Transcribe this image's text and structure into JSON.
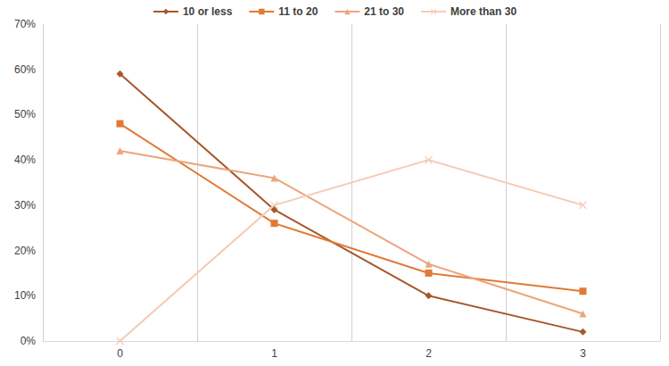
{
  "chart_data": {
    "type": "line",
    "categories": [
      "0",
      "1",
      "2",
      "3"
    ],
    "series": [
      {
        "name": "10 or less",
        "color": "#a5582a",
        "marker": "diamond",
        "values": [
          59,
          29,
          10,
          2
        ]
      },
      {
        "name": "11 to 20",
        "color": "#e07a35",
        "marker": "square",
        "values": [
          48,
          26,
          15,
          11
        ]
      },
      {
        "name": "21 to 30",
        "color": "#eda57c",
        "marker": "triangle",
        "values": [
          42,
          36,
          17,
          6
        ]
      },
      {
        "name": "More than 30",
        "color": "#f4cbb3",
        "marker": "x",
        "values": [
          0,
          30,
          40,
          30
        ]
      }
    ],
    "ylim": [
      0,
      70
    ],
    "yticks": [
      {
        "value": 0,
        "label": "0%"
      },
      {
        "value": 10,
        "label": "10%"
      },
      {
        "value": 20,
        "label": "20%"
      },
      {
        "value": 30,
        "label": "30%"
      },
      {
        "value": 40,
        "label": "40%"
      },
      {
        "value": 50,
        "label": "50%"
      },
      {
        "value": 60,
        "label": "60%"
      },
      {
        "value": 70,
        "label": "70%"
      }
    ],
    "grid": "x",
    "legend": "top"
  }
}
